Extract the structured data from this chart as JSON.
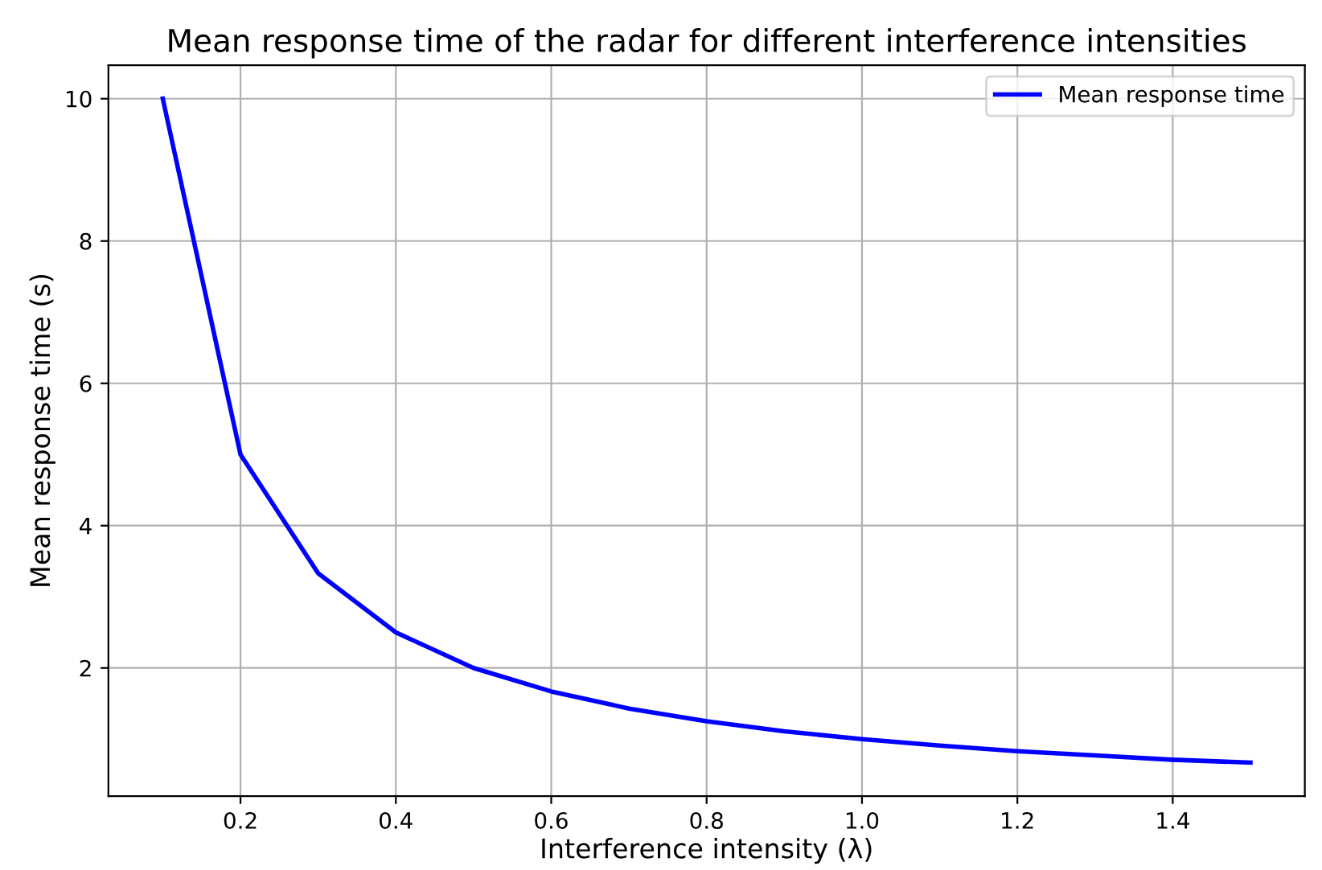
{
  "chart_data": {
    "type": "line",
    "title": "Mean response time of the radar for different interference intensities",
    "xlabel": "Interference intensity (λ)",
    "ylabel": "Mean response time (s)",
    "x": [
      0.1,
      0.2,
      0.3,
      0.4,
      0.5,
      0.6,
      0.7,
      0.8,
      0.9,
      1.0,
      1.1,
      1.2,
      1.3,
      1.4,
      1.5
    ],
    "series": [
      {
        "name": "Mean response time",
        "color": "#0000ff",
        "values": [
          10,
          5,
          3.33,
          2.5,
          2,
          1.67,
          1.43,
          1.25,
          1.11,
          1.0,
          0.91,
          0.83,
          0.77,
          0.71,
          0.67
        ]
      }
    ],
    "xlim": [
      0.03,
      1.57
    ],
    "ylim": [
      0.2,
      10.47
    ],
    "xticks": [
      0.2,
      0.4,
      0.6,
      0.8,
      {
        "value": 1,
        "label": "1.0"
      },
      1.2,
      1.4
    ],
    "yticks": [
      2,
      4,
      6,
      8,
      10
    ],
    "grid": true,
    "legend": "top right",
    "marker": "none",
    "line_style": "solid"
  }
}
